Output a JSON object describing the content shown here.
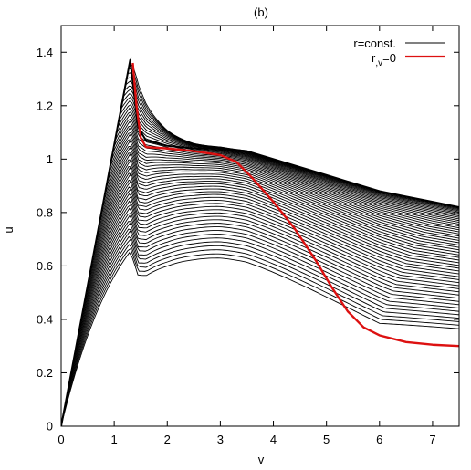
{
  "chart_data": {
    "type": "line",
    "title": "(b)",
    "xlabel": "v",
    "ylabel": "u",
    "xlim": [
      0,
      7.5
    ],
    "ylim": [
      0,
      1.5
    ],
    "xticks": [
      "0",
      "1",
      "2",
      "3",
      "4",
      "5",
      "6",
      "7"
    ],
    "yticks": [
      "0",
      "0.2",
      "0.4",
      "0.6",
      "0.8",
      "1",
      "1.2",
      "1.4"
    ],
    "grid": false,
    "legend_position": "top-right",
    "colors": {
      "rconst": "#000000",
      "rv0": "#dd1111"
    },
    "series": [
      {
        "name": "r=const.",
        "sub": "",
        "family": {
          "peak": {
            "v": 1.3,
            "u": 1.37
          },
          "envelope": [
            [
              1.3,
              1.37
            ],
            [
              1.45,
              1.12
            ],
            [
              1.6,
              1.07
            ],
            [
              2.0,
              1.05
            ],
            [
              2.5,
              1.04
            ],
            [
              3.0,
              1.04
            ],
            [
              3.5,
              1.03
            ],
            [
              4.0,
              1.0
            ],
            [
              4.5,
              0.97
            ],
            [
              5.0,
              0.94
            ],
            [
              5.5,
              0.91
            ],
            [
              6.0,
              0.88
            ],
            [
              6.5,
              0.86
            ],
            [
              7.0,
              0.84
            ],
            [
              7.5,
              0.82
            ]
          ],
          "curves": 52
        }
      },
      {
        "name": "r",
        "sub": ",v",
        "suffix": "=0",
        "values": [
          [
            1.35,
            1.36
          ],
          [
            1.42,
            1.2
          ],
          [
            1.5,
            1.08
          ],
          [
            1.6,
            1.045
          ],
          [
            2.0,
            1.04
          ],
          [
            2.5,
            1.03
          ],
          [
            3.0,
            1.015
          ],
          [
            3.3,
            0.99
          ],
          [
            3.6,
            0.93
          ],
          [
            4.0,
            0.84
          ],
          [
            4.4,
            0.74
          ],
          [
            4.8,
            0.62
          ],
          [
            5.1,
            0.52
          ],
          [
            5.4,
            0.43
          ],
          [
            5.7,
            0.37
          ],
          [
            6.0,
            0.34
          ],
          [
            6.5,
            0.315
          ],
          [
            7.0,
            0.305
          ],
          [
            7.5,
            0.3
          ]
        ]
      }
    ]
  }
}
